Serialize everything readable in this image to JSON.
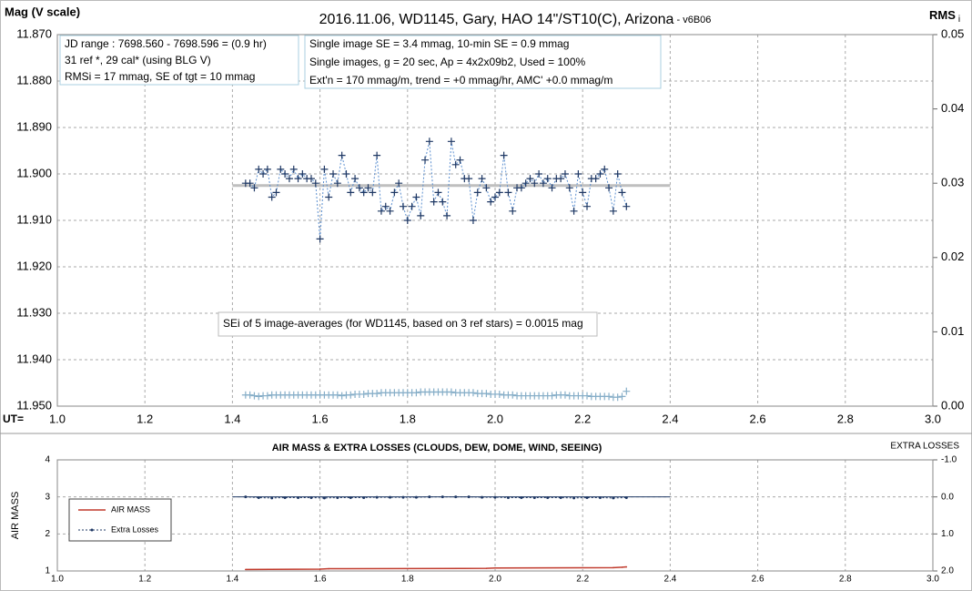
{
  "chart_data": [
    {
      "type": "line",
      "title": "2016.11.06,  WD1145, Gary, HAO  14\"/ST10(C), Arizona",
      "title_suffix": " - v6B06",
      "y_label": "Mag (V scale)",
      "y2_label": "RMS",
      "y2_label_sub": "i",
      "x_label": "UT=",
      "xlim": [
        1.0,
        3.0
      ],
      "xticks": [
        {
          "value": 1.0,
          "label": "1.0"
        },
        {
          "value": 1.2,
          "label": "1.2"
        },
        {
          "value": 1.4,
          "label": "1.4"
        },
        {
          "value": 1.6,
          "label": "1.6"
        },
        {
          "value": 1.8,
          "label": "1.8"
        },
        {
          "value": 2.0,
          "label": "2.0"
        },
        {
          "value": 2.2,
          "label": "2.2"
        },
        {
          "value": 2.4,
          "label": "2.4"
        },
        {
          "value": 2.6,
          "label": "2.6"
        },
        {
          "value": 2.8,
          "label": "2.8"
        },
        {
          "value": 3.0,
          "label": "3.0"
        }
      ],
      "ylim": [
        11.95,
        11.87
      ],
      "yticks": [
        {
          "value": 11.87,
          "label": "11.870"
        },
        {
          "value": 11.88,
          "label": "11.880"
        },
        {
          "value": 11.89,
          "label": "11.890"
        },
        {
          "value": 11.9,
          "label": "11.900"
        },
        {
          "value": 11.91,
          "label": "11.910"
        },
        {
          "value": 11.92,
          "label": "11.920"
        },
        {
          "value": 11.93,
          "label": "11.930"
        },
        {
          "value": 11.94,
          "label": "11.940"
        },
        {
          "value": 11.95,
          "label": "11.950"
        }
      ],
      "y2lim": [
        0,
        0.05
      ],
      "y2ticks": [
        {
          "value": 0,
          "label": "0.00"
        },
        {
          "value": 0.01,
          "label": "0.01"
        },
        {
          "value": 0.02,
          "label": "0.02"
        },
        {
          "value": 0.03,
          "label": "0.03"
        },
        {
          "value": 0.04,
          "label": "0.04"
        },
        {
          "value": 0.05,
          "label": "0.05"
        }
      ],
      "grid": true,
      "series": [
        {
          "color": "#1f3864",
          "line_color": "#5b8fd0",
          "marker": "plus",
          "line": "dashed",
          "x": [
            1.43,
            1.44,
            1.45,
            1.46,
            1.47,
            1.48,
            1.49,
            1.5,
            1.51,
            1.52,
            1.53,
            1.54,
            1.55,
            1.56,
            1.57,
            1.58,
            1.59,
            1.6,
            1.61,
            1.62,
            1.63,
            1.64,
            1.65,
            1.66,
            1.67,
            1.68,
            1.69,
            1.7,
            1.71,
            1.72,
            1.73,
            1.74,
            1.75,
            1.76,
            1.77,
            1.78,
            1.79,
            1.8,
            1.81,
            1.82,
            1.83,
            1.84,
            1.85,
            1.86,
            1.87,
            1.88,
            1.89,
            1.9,
            1.91,
            1.92,
            1.93,
            1.94,
            1.95,
            1.96,
            1.97,
            1.98,
            1.99,
            2.0,
            2.01,
            2.02,
            2.03,
            2.04,
            2.05,
            2.06,
            2.07,
            2.08,
            2.09,
            2.1,
            2.11,
            2.12,
            2.13,
            2.14,
            2.15,
            2.16,
            2.17,
            2.18,
            2.19,
            2.2,
            2.21,
            2.22,
            2.23,
            2.24,
            2.25,
            2.26,
            2.27,
            2.28,
            2.29,
            2.3
          ],
          "values": [
            11.902,
            11.902,
            11.903,
            11.899,
            11.9,
            11.899,
            11.905,
            11.904,
            11.899,
            11.9,
            11.901,
            11.899,
            11.901,
            11.9,
            11.901,
            11.901,
            11.902,
            11.914,
            11.899,
            11.905,
            11.9,
            11.902,
            11.896,
            11.9,
            11.904,
            11.901,
            11.903,
            11.904,
            11.903,
            11.904,
            11.896,
            11.908,
            11.907,
            11.908,
            11.904,
            11.902,
            11.907,
            11.91,
            11.907,
            11.905,
            11.909,
            11.897,
            11.893,
            11.906,
            11.904,
            11.906,
            11.909,
            11.893,
            11.898,
            11.897,
            11.901,
            11.901,
            11.91,
            11.904,
            11.901,
            11.903,
            11.906,
            11.905,
            11.904,
            11.896,
            11.904,
            11.908,
            11.903,
            11.903,
            11.902,
            11.901,
            11.902,
            11.9,
            11.902,
            11.901,
            11.903,
            11.901,
            11.901,
            11.9,
            11.903,
            11.908,
            11.9,
            11.904,
            11.907,
            11.901,
            11.901,
            11.9,
            11.899,
            11.903,
            11.908,
            11.9,
            11.904,
            11.907
          ]
        },
        {
          "axis": "y2",
          "color": "#86aec8",
          "marker": "plus",
          "line": "none",
          "x": [
            1.43,
            1.44,
            1.45,
            1.46,
            1.47,
            1.48,
            1.49,
            1.5,
            1.51,
            1.52,
            1.53,
            1.54,
            1.55,
            1.56,
            1.57,
            1.58,
            1.59,
            1.6,
            1.61,
            1.62,
            1.63,
            1.64,
            1.65,
            1.66,
            1.67,
            1.68,
            1.69,
            1.7,
            1.71,
            1.72,
            1.73,
            1.74,
            1.75,
            1.76,
            1.77,
            1.78,
            1.79,
            1.8,
            1.81,
            1.82,
            1.83,
            1.84,
            1.85,
            1.86,
            1.87,
            1.88,
            1.89,
            1.9,
            1.91,
            1.92,
            1.93,
            1.94,
            1.95,
            1.96,
            1.97,
            1.98,
            1.99,
            2.0,
            2.01,
            2.02,
            2.03,
            2.04,
            2.05,
            2.06,
            2.07,
            2.08,
            2.09,
            2.1,
            2.11,
            2.12,
            2.13,
            2.14,
            2.15,
            2.16,
            2.17,
            2.18,
            2.19,
            2.2,
            2.21,
            2.22,
            2.23,
            2.24,
            2.25,
            2.26,
            2.27,
            2.28,
            2.29,
            2.3
          ],
          "values": [
            0.0015,
            0.0015,
            0.0014,
            0.0013,
            0.0014,
            0.0014,
            0.0015,
            0.0015,
            0.0015,
            0.0015,
            0.0015,
            0.0015,
            0.0015,
            0.0015,
            0.0015,
            0.0015,
            0.0015,
            0.0015,
            0.0015,
            0.0015,
            0.0015,
            0.0015,
            0.0014,
            0.0015,
            0.0015,
            0.0016,
            0.0016,
            0.0016,
            0.0017,
            0.0017,
            0.0017,
            0.0018,
            0.0018,
            0.0018,
            0.0018,
            0.0018,
            0.0018,
            0.0018,
            0.0018,
            0.0018,
            0.0019,
            0.0019,
            0.0019,
            0.0019,
            0.0019,
            0.0019,
            0.0019,
            0.0019,
            0.0018,
            0.0018,
            0.0018,
            0.0018,
            0.0018,
            0.0017,
            0.0017,
            0.0017,
            0.0016,
            0.0016,
            0.0016,
            0.0015,
            0.0015,
            0.0015,
            0.0014,
            0.0014,
            0.0014,
            0.0014,
            0.0014,
            0.0014,
            0.0014,
            0.0014,
            0.0014,
            0.0015,
            0.0015,
            0.0015,
            0.0014,
            0.0014,
            0.0014,
            0.0014,
            0.0014,
            0.0013,
            0.0013,
            0.0013,
            0.0013,
            0.0013,
            0.0012,
            0.0012,
            0.0013,
            0.002
          ]
        }
      ],
      "reference_lines": [
        {
          "x": [
            1.4,
            2.4
          ],
          "y": 11.9025,
          "color": "#bfbfbf",
          "width": 3
        }
      ],
      "annotations": [
        {
          "lines": [
            "JD range  : 7698.560 - 7698.596  = (0.9 hr)",
            "31 ref *, 29 cal* (using BLG V)",
            "RMSi = 17 mmag, SE of tgt = 10 mmag"
          ]
        },
        {
          "lines": [
            "Single image SE = 3.4 mmag, 10-min SE = 0.9 mmag",
            "Single images, g = 20 sec, Ap = 4x2x09b2, Used = 100%",
            "Ext'n = 170 mmag/m, trend = +0 mmag/hr, AMC' +0.0 mmag/m"
          ]
        },
        {
          "lines": [
            "SEi of 5 image-averages (for WD1145, based on 3 ref stars) = 0.0015 mag"
          ]
        }
      ]
    },
    {
      "type": "line",
      "title": "AIR MASS & EXTRA LOSSES (CLOUDS, DEW, DOME, WIND, SEEING)",
      "y_label": "AIR MASS",
      "y2_label": "EXTRA LOSSES",
      "xlim": [
        1.0,
        3.0
      ],
      "xticks": [
        {
          "value": 1.0,
          "label": "1.0"
        },
        {
          "value": 1.2,
          "label": "1.2"
        },
        {
          "value": 1.4,
          "label": "1.4"
        },
        {
          "value": 1.6,
          "label": "1.6"
        },
        {
          "value": 1.8,
          "label": "1.8"
        },
        {
          "value": 2.0,
          "label": "2.0"
        },
        {
          "value": 2.2,
          "label": "2.2"
        },
        {
          "value": 2.4,
          "label": "2.4"
        },
        {
          "value": 2.6,
          "label": "2.6"
        },
        {
          "value": 2.8,
          "label": "2.8"
        },
        {
          "value": 3.0,
          "label": "3.0"
        }
      ],
      "ylim": [
        1,
        4
      ],
      "yticks": [
        1,
        2,
        3,
        4
      ],
      "y2lim": [
        2.0,
        -1.0
      ],
      "y2ticks": [
        {
          "value": -1.0,
          "label": "-1.0"
        },
        {
          "value": 0.0,
          "label": "0.0"
        },
        {
          "value": 1.0,
          "label": "1.0"
        },
        {
          "value": 2.0,
          "label": "2.0"
        }
      ],
      "grid": true,
      "legend": "left",
      "series": [
        {
          "name": "AIR MASS",
          "color": "#c0392b",
          "line_color": "#c0392b",
          "marker": "none",
          "line": "solid",
          "x": [
            1.43,
            1.6,
            1.62,
            1.98,
            2.0,
            2.27,
            2.29,
            2.3
          ],
          "values": [
            1.04,
            1.05,
            1.06,
            1.07,
            1.08,
            1.09,
            1.1,
            1.11
          ]
        },
        {
          "name": "Extra Losses",
          "axis": "y2",
          "color": "#1f3864",
          "line_color": "#1f3864",
          "marker": "dot",
          "line": "dashed",
          "x": [
            1.43,
            1.46,
            1.49,
            1.52,
            1.55,
            1.58,
            1.61,
            1.64,
            1.67,
            1.7,
            1.73,
            1.76,
            1.79,
            1.82,
            1.85,
            1.88,
            1.91,
            1.94,
            1.97,
            2.0,
            2.03,
            2.06,
            2.09,
            2.12,
            2.15,
            2.18,
            2.21,
            2.24,
            2.27,
            2.3
          ],
          "values": [
            0.0,
            0.02,
            0.03,
            0.02,
            0.02,
            0.02,
            0.03,
            0.02,
            0.02,
            0.02,
            0.01,
            0.01,
            0.01,
            0.01,
            0.0,
            0.0,
            0.0,
            0.0,
            0.01,
            0.01,
            0.02,
            0.02,
            0.02,
            0.02,
            0.02,
            0.03,
            0.02,
            0.02,
            0.03,
            0.02
          ]
        }
      ],
      "reference_lines": [
        {
          "x": [
            1.4,
            2.4
          ],
          "y": 0.0,
          "axis": "y2",
          "color": "#1f3864",
          "width": 1
        }
      ]
    }
  ]
}
